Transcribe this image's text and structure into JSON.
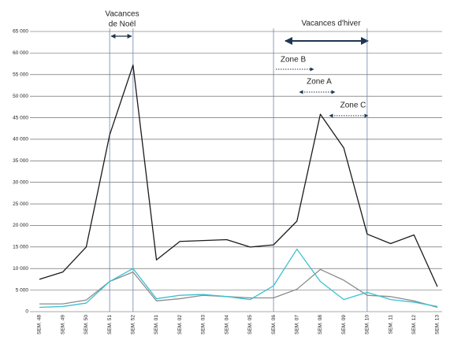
{
  "chart_data": {
    "type": "line",
    "categories": [
      "SEM. 48",
      "SEM. 49",
      "SEM. 50",
      "SEM. 51",
      "SEM. 52",
      "SEM. 01",
      "SEM. 02",
      "SEM. 03",
      "SEM. 04",
      "SEM. 05",
      "SEM. 06",
      "SEM. 07",
      "SEM. 08",
      "SEM. 09",
      "SEM. 10",
      "SEM. 11",
      "SEM. 12",
      "SEM. 13"
    ],
    "series": [
      {
        "color": "#1a1a1a",
        "values": [
          7500,
          9200,
          15000,
          41000,
          57200,
          12000,
          16300,
          16500,
          16700,
          15000,
          15500,
          21000,
          45800,
          38000,
          18000,
          15800,
          17800,
          5800
        ]
      },
      {
        "color": "#8c8c8c",
        "values": [
          1800,
          1800,
          2700,
          7000,
          9200,
          2500,
          3000,
          3800,
          3500,
          3200,
          3200,
          5200,
          9800,
          7300,
          3800,
          3500,
          2500,
          1000
        ]
      },
      {
        "color": "#3cc0d0",
        "values": [
          1000,
          1200,
          2000,
          7000,
          10000,
          3000,
          3800,
          4000,
          3500,
          2800,
          6000,
          14500,
          7000,
          2800,
          4500,
          2800,
          2200,
          1200
        ]
      }
    ],
    "ylim": [
      0,
      65000
    ],
    "yticks": [
      0,
      {
        "value": 5000,
        "label": "5 000"
      },
      {
        "value": 10000,
        "label": "10 000"
      },
      {
        "value": 15000,
        "label": "15 000"
      },
      {
        "value": 20000,
        "label": "20 000"
      },
      {
        "value": 25000,
        "label": "25 000"
      },
      {
        "value": 30000,
        "label": "30 000"
      },
      {
        "value": 35000,
        "label": "35 000"
      },
      {
        "value": 40000,
        "label": "40 000"
      },
      {
        "value": 45000,
        "label": "45 000"
      },
      {
        "value": 50000,
        "label": "50 000"
      },
      {
        "value": 55000,
        "label": "55 000"
      },
      {
        "value": 60000,
        "label": "60 000"
      },
      {
        "value": 65000,
        "label": "65 000"
      }
    ],
    "grid": true,
    "annotations": [
      "Vacances",
      "de Noël",
      "Vacances d'hiver",
      "Zone B",
      "Zone A",
      "Zone C"
    ]
  }
}
